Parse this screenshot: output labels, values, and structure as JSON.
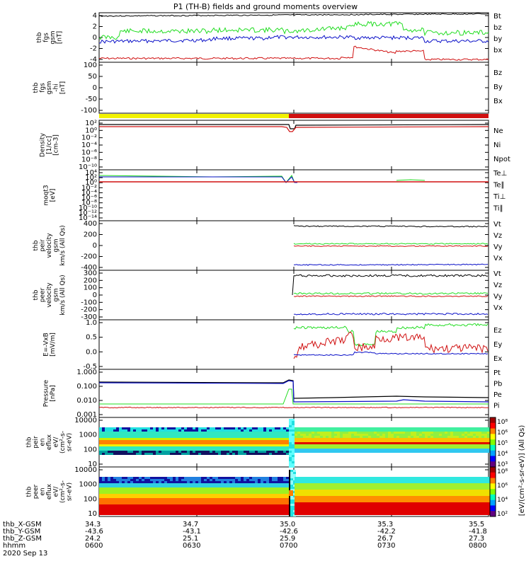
{
  "title": "P1 (TH-B) fields and ground moments overview",
  "colors": {
    "black": "#000000",
    "red": "#d01010",
    "green": "#22dd22",
    "blue": "#0a10c8",
    "yellow": "#f2f200",
    "cyan": "#00c8c8",
    "purple": "#a000c8"
  },
  "panels": [
    {
      "id": "fgs",
      "ylabel": [
        "thb",
        "fgs",
        "gsm",
        "[nT]"
      ],
      "ytick_labels": [
        "4",
        "2",
        "0",
        "-2",
        "-4"
      ],
      "legend": [
        {
          "name": "Bt",
          "color": "black"
        },
        {
          "name": "bz",
          "color": "red"
        },
        {
          "name": "by",
          "color": "green"
        },
        {
          "name": "bx",
          "color": "blue"
        }
      ]
    },
    {
      "id": "fgs_hi",
      "ylabel": [
        "thb",
        "fgs",
        "gsm",
        "-hi",
        "[nT]"
      ],
      "ytick_labels": [
        "100",
        "50",
        "0",
        "-50",
        "-100"
      ],
      "legend": [
        {
          "name": "Bz",
          "color": "red"
        },
        {
          "name": "By",
          "color": "green"
        },
        {
          "name": "Bx",
          "color": "blue"
        }
      ]
    },
    {
      "id": "density",
      "ylabel": [
        "Density",
        "[1/cc]",
        "[cm-3]"
      ],
      "ytick_labels": [
        "10²",
        "10⁰",
        "10⁻²",
        "10⁻⁴",
        "10⁻⁶",
        "10⁻⁸",
        "10⁻¹⁰"
      ],
      "legend": [
        {
          "name": "Ne",
          "color": "red"
        },
        {
          "name": "Ni",
          "color": "black"
        },
        {
          "name": "Npot",
          "color": "blue"
        }
      ]
    },
    {
      "id": "temperature",
      "ylabel": [
        "moqt3",
        "[eV]"
      ],
      "ytick_labels": [
        "10⁴",
        "10²",
        "10⁰",
        "10⁻²",
        "10⁻⁴",
        "10⁻⁶",
        "10⁻⁸",
        "10⁻¹⁰",
        "10⁻¹²",
        "10⁻¹⁴"
      ],
      "legend": [
        {
          "name": "Te⊥",
          "color": "red"
        },
        {
          "name": "Te∥",
          "color": "black"
        },
        {
          "name": "Ti⊥",
          "color": "purple"
        },
        {
          "name": "Ti∥",
          "color": "green"
        }
      ]
    },
    {
      "id": "peir_vel",
      "ylabel": [
        "thb",
        "peir",
        "velocity",
        "gsm",
        "km/s (All Qs)"
      ],
      "ytick_labels": [
        "400",
        "200",
        "0",
        "-200",
        "-400"
      ],
      "legend": [
        {
          "name": "Vt",
          "color": "black"
        },
        {
          "name": "Vz",
          "color": "red"
        },
        {
          "name": "Vy",
          "color": "green"
        },
        {
          "name": "Vx",
          "color": "blue"
        }
      ]
    },
    {
      "id": "peer_vel",
      "ylabel": [
        "thb",
        "peer",
        "velocity",
        "gsm",
        "km/s (All Qs)"
      ],
      "ytick_labels": [
        "300",
        "200",
        "100",
        "0",
        "-100",
        "-200",
        "-300"
      ],
      "legend": [
        {
          "name": "Vt",
          "color": "black"
        },
        {
          "name": "Vz",
          "color": "red"
        },
        {
          "name": "Vy",
          "color": "green"
        },
        {
          "name": "Vx",
          "color": "blue"
        }
      ]
    },
    {
      "id": "efield",
      "ylabel": [
        "E=-VxB",
        "[mV/m]"
      ],
      "ytick_labels": [
        "1.0",
        "0.5",
        "0.0",
        "-0.5"
      ],
      "legend": [
        {
          "name": "Ez",
          "color": "red"
        },
        {
          "name": "Ey",
          "color": "green"
        },
        {
          "name": "Ex",
          "color": "blue"
        }
      ]
    },
    {
      "id": "pressure",
      "ylabel": [
        "Pressure",
        "[nPa]"
      ],
      "ytick_labels": [
        "1.000",
        "0.100",
        "0.010",
        "0.001"
      ],
      "legend": [
        {
          "name": "Pt",
          "color": "black"
        },
        {
          "name": "Pb",
          "color": "red"
        },
        {
          "name": "Pe",
          "color": "green"
        },
        {
          "name": "Pi",
          "color": "blue"
        }
      ]
    },
    {
      "id": "peir_eflux",
      "ylabel": [
        "thb",
        "peir",
        "en",
        "eflux",
        "eV/",
        "(cm²-s-",
        "sr-eV)"
      ],
      "ytick_labels": [
        "10000",
        "1000",
        "100",
        "10"
      ]
    },
    {
      "id": "peer_eflux",
      "ylabel": [
        "thb",
        "peer",
        "en",
        "eflux",
        "eV/",
        "(cm²-s-",
        "sr-eV)"
      ],
      "ytick_labels": [
        "10000",
        "1000",
        "100",
        "10"
      ]
    }
  ],
  "colorbars": [
    {
      "tick_labels": [
        "10⁸",
        "10⁶",
        "10⁵",
        "10⁴",
        "10³"
      ],
      "label": "[eV/(cm²-s-sr-eV)] (All Qs)"
    },
    {
      "tick_labels": [
        "10⁸",
        "10⁶",
        "10⁴",
        "10²"
      ],
      "label": "[eV/(cm²-s-sr-eV)] (All Qs)"
    }
  ],
  "footer": {
    "rows": [
      {
        "label": "thb_X-GSM",
        "values": [
          "34.3",
          "34.7",
          "35.0",
          "35.3",
          "35.5"
        ]
      },
      {
        "label": "thb_Y-GSM",
        "values": [
          "-43.6",
          "-43.1",
          "-42.6",
          "-42.2",
          "-41.8"
        ]
      },
      {
        "label": "thb_Z-GSM",
        "values": [
          "24.2",
          "25.1",
          "25.9",
          "26.7",
          "27.3"
        ]
      },
      {
        "label": "hhmm",
        "values": [
          "0600",
          "0630",
          "0700",
          "0730",
          "0800"
        ]
      }
    ],
    "date": "2020 Sep 13"
  },
  "chart_data": {
    "type": "line",
    "title": "P1 (TH-B) fields and ground moments overview",
    "x": [
      "06:00",
      "06:30",
      "07:00",
      "07:30",
      "08:00"
    ],
    "panels": [
      {
        "id": "fgs",
        "ylim": [
          -4,
          4.5
        ],
        "series": [
          {
            "name": "Bt",
            "values": [
              4.0,
              4.1,
              4.2,
              4.3,
              4.4
            ]
          },
          {
            "name": "bz",
            "values": [
              -3.6,
              -3.5,
              -3.6,
              -2.2,
              -3.8
            ]
          },
          {
            "name": "by",
            "values": [
              0.0,
              1.5,
              1.6,
              2.5,
              0.8
            ]
          },
          {
            "name": "bx",
            "values": [
              -0.6,
              -0.5,
              0.1,
              0.1,
              -0.3
            ]
          }
        ]
      },
      {
        "id": "fgs_hi",
        "ylim": [
          -120,
          100
        ],
        "series": []
      },
      {
        "id": "density",
        "scale": "log",
        "series": [
          {
            "name": "Ne",
            "values": [
              0.5,
              0.5,
              0.4,
              0.5,
              0.5
            ]
          },
          {
            "name": "Ni",
            "values": [
              1.2,
              1.2,
              1.0,
              1.2,
              1.2
            ]
          }
        ]
      },
      {
        "id": "temperature",
        "scale": "log",
        "series": [
          {
            "name": "Te⊥",
            "values": [
              1.0,
              1.0,
              1.0,
              1.0,
              1.0
            ]
          },
          {
            "name": "Te∥",
            "values": [
              60,
              60,
              40,
              null,
              null
            ]
          },
          {
            "name": "Ti∥",
            "values": [
              null,
              null,
              null,
              1.5,
              null
            ]
          }
        ]
      },
      {
        "id": "peir_vel",
        "ylim": [
          -400,
          400
        ],
        "series": [
          {
            "name": "Vt",
            "values": [
              null,
              null,
              330,
              325,
              320
            ]
          },
          {
            "name": "Vz",
            "values": [
              null,
              null,
              -10,
              -10,
              -10
            ]
          },
          {
            "name": "Vy",
            "values": [
              null,
              null,
              20,
              30,
              25
            ]
          },
          {
            "name": "Vx",
            "values": [
              null,
              null,
              -330,
              -325,
              -320
            ]
          }
        ]
      },
      {
        "id": "peer_vel",
        "ylim": [
          -300,
          300
        ],
        "series": [
          {
            "name": "Vt",
            "values": [
              null,
              null,
              250,
              250,
              245
            ]
          },
          {
            "name": "Vz",
            "values": [
              null,
              null,
              -15,
              -15,
              -15
            ]
          },
          {
            "name": "Vy",
            "values": [
              null,
              null,
              20,
              25,
              20
            ]
          },
          {
            "name": "Vx",
            "values": [
              null,
              null,
              -245,
              -245,
              -240
            ]
          }
        ]
      },
      {
        "id": "efield",
        "ylim": [
          -0.5,
          1.3
        ],
        "series": [
          {
            "name": "Ez",
            "values": [
              null,
              null,
              0.0,
              0.6,
              0.2
            ]
          },
          {
            "name": "Ey",
            "values": [
              null,
              null,
              1.05,
              0.5,
              1.2
            ]
          },
          {
            "name": "Ex",
            "values": [
              null,
              null,
              0.0,
              0.1,
              0.05
            ]
          }
        ]
      },
      {
        "id": "pressure",
        "scale": "log",
        "series": [
          {
            "name": "Pt",
            "values": [
              0.17,
              0.17,
              0.22,
              0.022,
              0.022
            ]
          },
          {
            "name": "Pb",
            "values": [
              0.005,
              0.005,
              0.005,
              0.006,
              0.006
            ]
          },
          {
            "name": "Pe",
            "values": [
              0.008,
              0.008,
              0.01,
              0.009,
              0.009
            ]
          },
          {
            "name": "Pi",
            "values": [
              0.16,
              0.16,
              0.2,
              0.014,
              0.014
            ]
          }
        ]
      },
      {
        "id": "peir_eflux",
        "type": "heatmap",
        "yscale": "log",
        "ylim": [
          5,
          15000
        ]
      },
      {
        "id": "peer_eflux",
        "type": "heatmap",
        "yscale": "log",
        "ylim": [
          5,
          15000
        ]
      }
    ]
  }
}
